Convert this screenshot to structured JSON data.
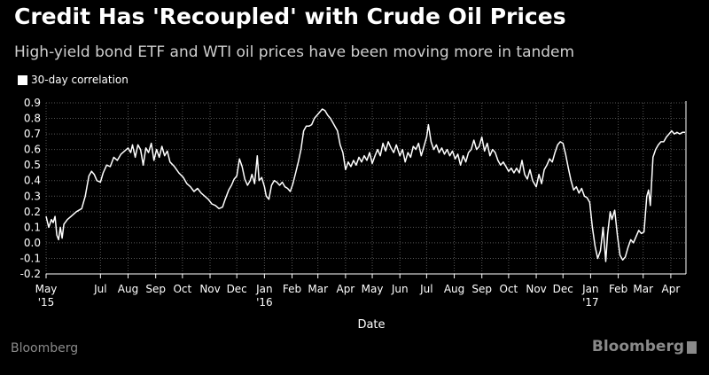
{
  "header": {
    "title": "Credit Has 'Recoupled' with Crude Oil Prices",
    "subtitle": "High-yield bond ETF and WTI oil prices have been moving more in tandem"
  },
  "legend": {
    "label": "30-day correlation"
  },
  "footer": {
    "source": "Bloomberg",
    "brand": "Bloomberg"
  },
  "colors": {
    "background": "#000000",
    "line": "#ffffff",
    "grid": "#555555",
    "text": "#ffffff",
    "muted": "#8a8a8a"
  },
  "chart_data": {
    "type": "line",
    "title": "Credit Has 'Recoupled' with Crude Oil Prices",
    "subtitle": "High-yield bond ETF and WTI oil prices have been moving more in tandem",
    "xlabel": "Date",
    "ylabel": "",
    "ylim": [
      -0.2,
      0.9
    ],
    "yticks": [
      -0.2,
      -0.1,
      0.0,
      0.1,
      0.2,
      0.3,
      0.4,
      0.5,
      0.6,
      0.7,
      0.8,
      0.9
    ],
    "ytick_labels": [
      "-0.2",
      "-0.1",
      "0.0",
      "0.1",
      "0.2",
      "0.3",
      "0.4",
      "0.5",
      "0.6",
      "0.7",
      "0.8",
      "0.9"
    ],
    "xlim": [
      "2015-05-01",
      "2017-04-18"
    ],
    "xticks": [
      {
        "date": "2015-05-01",
        "label": "May",
        "year": "'15"
      },
      {
        "date": "2015-07-01",
        "label": "Jul",
        "year": ""
      },
      {
        "date": "2015-08-01",
        "label": "Aug",
        "year": ""
      },
      {
        "date": "2015-09-01",
        "label": "Sep",
        "year": ""
      },
      {
        "date": "2015-10-01",
        "label": "Oct",
        "year": ""
      },
      {
        "date": "2015-11-01",
        "label": "Nov",
        "year": ""
      },
      {
        "date": "2015-12-01",
        "label": "Dec",
        "year": ""
      },
      {
        "date": "2016-01-01",
        "label": "Jan",
        "year": "'16"
      },
      {
        "date": "2016-02-01",
        "label": "Feb",
        "year": ""
      },
      {
        "date": "2016-03-01",
        "label": "Mar",
        "year": ""
      },
      {
        "date": "2016-04-01",
        "label": "Apr",
        "year": ""
      },
      {
        "date": "2016-05-01",
        "label": "May",
        "year": ""
      },
      {
        "date": "2016-06-01",
        "label": "Jun",
        "year": ""
      },
      {
        "date": "2016-07-01",
        "label": "Jul",
        "year": ""
      },
      {
        "date": "2016-08-01",
        "label": "Aug",
        "year": ""
      },
      {
        "date": "2016-09-01",
        "label": "Sep",
        "year": ""
      },
      {
        "date": "2016-10-01",
        "label": "Oct",
        "year": ""
      },
      {
        "date": "2016-11-01",
        "label": "Nov",
        "year": ""
      },
      {
        "date": "2016-12-01",
        "label": "Dec",
        "year": ""
      },
      {
        "date": "2017-01-01",
        "label": "Jan",
        "year": "'17"
      },
      {
        "date": "2017-02-01",
        "label": "Feb",
        "year": ""
      },
      {
        "date": "2017-03-01",
        "label": "Mar",
        "year": ""
      },
      {
        "date": "2017-04-01",
        "label": "Apr",
        "year": ""
      }
    ],
    "grid": true,
    "legend_position": "top-left",
    "series": [
      {
        "name": "30-day correlation",
        "points": [
          [
            "2015-05-01",
            0.17
          ],
          [
            "2015-05-04",
            0.1
          ],
          [
            "2015-05-07",
            0.15
          ],
          [
            "2015-05-09",
            0.13
          ],
          [
            "2015-05-11",
            0.17
          ],
          [
            "2015-05-13",
            0.05
          ],
          [
            "2015-05-15",
            0.02
          ],
          [
            "2015-05-17",
            0.1
          ],
          [
            "2015-05-19",
            0.03
          ],
          [
            "2015-05-21",
            0.12
          ],
          [
            "2015-05-25",
            0.15
          ],
          [
            "2015-05-29",
            0.17
          ],
          [
            "2015-06-04",
            0.2
          ],
          [
            "2015-06-10",
            0.22
          ],
          [
            "2015-06-14",
            0.3
          ],
          [
            "2015-06-18",
            0.43
          ],
          [
            "2015-06-21",
            0.46
          ],
          [
            "2015-06-24",
            0.44
          ],
          [
            "2015-06-27",
            0.4
          ],
          [
            "2015-07-01",
            0.39
          ],
          [
            "2015-07-04",
            0.45
          ],
          [
            "2015-07-08",
            0.5
          ],
          [
            "2015-07-12",
            0.49
          ],
          [
            "2015-07-16",
            0.55
          ],
          [
            "2015-07-20",
            0.53
          ],
          [
            "2015-07-24",
            0.57
          ],
          [
            "2015-07-28",
            0.59
          ],
          [
            "2015-08-01",
            0.61
          ],
          [
            "2015-08-04",
            0.58
          ],
          [
            "2015-08-06",
            0.63
          ],
          [
            "2015-08-09",
            0.55
          ],
          [
            "2015-08-12",
            0.63
          ],
          [
            "2015-08-15",
            0.6
          ],
          [
            "2015-08-18",
            0.5
          ],
          [
            "2015-08-21",
            0.61
          ],
          [
            "2015-08-24",
            0.58
          ],
          [
            "2015-08-27",
            0.64
          ],
          [
            "2015-08-30",
            0.53
          ],
          [
            "2015-09-02",
            0.6
          ],
          [
            "2015-09-05",
            0.55
          ],
          [
            "2015-09-08",
            0.62
          ],
          [
            "2015-09-11",
            0.56
          ],
          [
            "2015-09-14",
            0.59
          ],
          [
            "2015-09-17",
            0.52
          ],
          [
            "2015-09-22",
            0.49
          ],
          [
            "2015-09-27",
            0.45
          ],
          [
            "2015-10-02",
            0.42
          ],
          [
            "2015-10-06",
            0.38
          ],
          [
            "2015-10-10",
            0.36
          ],
          [
            "2015-10-14",
            0.33
          ],
          [
            "2015-10-18",
            0.35
          ],
          [
            "2015-10-22",
            0.32
          ],
          [
            "2015-10-26",
            0.3
          ],
          [
            "2015-10-30",
            0.28
          ],
          [
            "2015-11-03",
            0.25
          ],
          [
            "2015-11-07",
            0.24
          ],
          [
            "2015-11-11",
            0.22
          ],
          [
            "2015-11-15",
            0.23
          ],
          [
            "2015-11-18",
            0.28
          ],
          [
            "2015-11-22",
            0.34
          ],
          [
            "2015-11-25",
            0.37
          ],
          [
            "2015-11-28",
            0.41
          ],
          [
            "2015-12-01",
            0.43
          ],
          [
            "2015-12-04",
            0.54
          ],
          [
            "2015-12-07",
            0.49
          ],
          [
            "2015-12-10",
            0.41
          ],
          [
            "2015-12-13",
            0.37
          ],
          [
            "2015-12-16",
            0.4
          ],
          [
            "2015-12-18",
            0.44
          ],
          [
            "2015-12-21",
            0.38
          ],
          [
            "2015-12-24",
            0.56
          ],
          [
            "2015-12-26",
            0.4
          ],
          [
            "2015-12-29",
            0.42
          ],
          [
            "2016-01-01",
            0.36
          ],
          [
            "2016-01-03",
            0.3
          ],
          [
            "2016-01-06",
            0.28
          ],
          [
            "2016-01-09",
            0.37
          ],
          [
            "2016-01-12",
            0.4
          ],
          [
            "2016-01-15",
            0.39
          ],
          [
            "2016-01-18",
            0.37
          ],
          [
            "2016-01-21",
            0.39
          ],
          [
            "2016-01-24",
            0.36
          ],
          [
            "2016-01-27",
            0.35
          ],
          [
            "2016-01-30",
            0.33
          ],
          [
            "2016-02-02",
            0.38
          ],
          [
            "2016-02-05",
            0.45
          ],
          [
            "2016-02-08",
            0.52
          ],
          [
            "2016-02-11",
            0.6
          ],
          [
            "2016-02-14",
            0.72
          ],
          [
            "2016-02-17",
            0.75
          ],
          [
            "2016-02-20",
            0.75
          ],
          [
            "2016-02-23",
            0.76
          ],
          [
            "2016-02-26",
            0.8
          ],
          [
            "2016-02-29",
            0.82
          ],
          [
            "2016-03-03",
            0.84
          ],
          [
            "2016-03-06",
            0.86
          ],
          [
            "2016-03-09",
            0.85
          ],
          [
            "2016-03-12",
            0.82
          ],
          [
            "2016-03-15",
            0.8
          ],
          [
            "2016-03-18",
            0.77
          ],
          [
            "2016-03-21",
            0.74
          ],
          [
            "2016-03-23",
            0.72
          ],
          [
            "2016-03-26",
            0.63
          ],
          [
            "2016-03-29",
            0.58
          ],
          [
            "2016-04-01",
            0.47
          ],
          [
            "2016-04-04",
            0.52
          ],
          [
            "2016-04-07",
            0.49
          ],
          [
            "2016-04-10",
            0.53
          ],
          [
            "2016-04-13",
            0.5
          ],
          [
            "2016-04-16",
            0.55
          ],
          [
            "2016-04-19",
            0.52
          ],
          [
            "2016-04-22",
            0.56
          ],
          [
            "2016-04-25",
            0.53
          ],
          [
            "2016-04-28",
            0.58
          ],
          [
            "2016-05-01",
            0.51
          ],
          [
            "2016-05-04",
            0.56
          ],
          [
            "2016-05-07",
            0.6
          ],
          [
            "2016-05-10",
            0.56
          ],
          [
            "2016-05-13",
            0.64
          ],
          [
            "2016-05-16",
            0.59
          ],
          [
            "2016-05-19",
            0.65
          ],
          [
            "2016-05-22",
            0.61
          ],
          [
            "2016-05-25",
            0.58
          ],
          [
            "2016-05-28",
            0.63
          ],
          [
            "2016-06-01",
            0.56
          ],
          [
            "2016-06-04",
            0.6
          ],
          [
            "2016-06-07",
            0.52
          ],
          [
            "2016-06-10",
            0.58
          ],
          [
            "2016-06-13",
            0.55
          ],
          [
            "2016-06-16",
            0.62
          ],
          [
            "2016-06-19",
            0.6
          ],
          [
            "2016-06-22",
            0.64
          ],
          [
            "2016-06-25",
            0.56
          ],
          [
            "2016-06-28",
            0.62
          ],
          [
            "2016-07-01",
            0.68
          ],
          [
            "2016-07-03",
            0.76
          ],
          [
            "2016-07-06",
            0.65
          ],
          [
            "2016-07-09",
            0.6
          ],
          [
            "2016-07-12",
            0.63
          ],
          [
            "2016-07-15",
            0.58
          ],
          [
            "2016-07-18",
            0.61
          ],
          [
            "2016-07-21",
            0.57
          ],
          [
            "2016-07-24",
            0.6
          ],
          [
            "2016-07-27",
            0.56
          ],
          [
            "2016-07-30",
            0.59
          ],
          [
            "2016-08-02",
            0.54
          ],
          [
            "2016-08-05",
            0.57
          ],
          [
            "2016-08-08",
            0.5
          ],
          [
            "2016-08-11",
            0.56
          ],
          [
            "2016-08-14",
            0.52
          ],
          [
            "2016-08-17",
            0.58
          ],
          [
            "2016-08-20",
            0.6
          ],
          [
            "2016-08-23",
            0.66
          ],
          [
            "2016-08-26",
            0.6
          ],
          [
            "2016-08-29",
            0.62
          ],
          [
            "2016-09-01",
            0.68
          ],
          [
            "2016-09-04",
            0.59
          ],
          [
            "2016-09-07",
            0.64
          ],
          [
            "2016-09-10",
            0.56
          ],
          [
            "2016-09-13",
            0.6
          ],
          [
            "2016-09-16",
            0.58
          ],
          [
            "2016-09-19",
            0.53
          ],
          [
            "2016-09-22",
            0.5
          ],
          [
            "2016-09-25",
            0.52
          ],
          [
            "2016-09-28",
            0.49
          ],
          [
            "2016-10-01",
            0.46
          ],
          [
            "2016-10-04",
            0.48
          ],
          [
            "2016-10-07",
            0.45
          ],
          [
            "2016-10-10",
            0.48
          ],
          [
            "2016-10-13",
            0.45
          ],
          [
            "2016-10-16",
            0.53
          ],
          [
            "2016-10-19",
            0.44
          ],
          [
            "2016-10-22",
            0.41
          ],
          [
            "2016-10-25",
            0.47
          ],
          [
            "2016-10-28",
            0.4
          ],
          [
            "2016-11-01",
            0.36
          ],
          [
            "2016-11-04",
            0.44
          ],
          [
            "2016-11-07",
            0.38
          ],
          [
            "2016-11-10",
            0.47
          ],
          [
            "2016-11-13",
            0.5
          ],
          [
            "2016-11-16",
            0.54
          ],
          [
            "2016-11-19",
            0.52
          ],
          [
            "2016-11-22",
            0.58
          ],
          [
            "2016-11-25",
            0.63
          ],
          [
            "2016-11-28",
            0.65
          ],
          [
            "2016-12-01",
            0.64
          ],
          [
            "2016-12-04",
            0.57
          ],
          [
            "2016-12-07",
            0.48
          ],
          [
            "2016-12-10",
            0.4
          ],
          [
            "2016-12-13",
            0.34
          ],
          [
            "2016-12-16",
            0.36
          ],
          [
            "2016-12-19",
            0.32
          ],
          [
            "2016-12-22",
            0.35
          ],
          [
            "2016-12-25",
            0.3
          ],
          [
            "2016-12-28",
            0.29
          ],
          [
            "2016-12-31",
            0.26
          ],
          [
            "2017-01-03",
            0.1
          ],
          [
            "2017-01-06",
            -0.02
          ],
          [
            "2017-01-09",
            -0.1
          ],
          [
            "2017-01-12",
            -0.05
          ],
          [
            "2017-01-15",
            0.1
          ],
          [
            "2017-01-18",
            -0.12
          ],
          [
            "2017-01-20",
            0.05
          ],
          [
            "2017-01-23",
            0.2
          ],
          [
            "2017-01-25",
            0.15
          ],
          [
            "2017-01-28",
            0.21
          ],
          [
            "2017-01-31",
            0.05
          ],
          [
            "2017-02-03",
            -0.08
          ],
          [
            "2017-02-06",
            -0.11
          ],
          [
            "2017-02-09",
            -0.09
          ],
          [
            "2017-02-12",
            -0.03
          ],
          [
            "2017-02-15",
            0.02
          ],
          [
            "2017-02-18",
            0.0
          ],
          [
            "2017-02-21",
            0.04
          ],
          [
            "2017-02-24",
            0.08
          ],
          [
            "2017-02-27",
            0.06
          ],
          [
            "2017-03-02",
            0.07
          ],
          [
            "2017-03-05",
            0.3
          ],
          [
            "2017-03-07",
            0.34
          ],
          [
            "2017-03-09",
            0.24
          ],
          [
            "2017-03-12",
            0.55
          ],
          [
            "2017-03-15",
            0.6
          ],
          [
            "2017-03-18",
            0.63
          ],
          [
            "2017-03-21",
            0.65
          ],
          [
            "2017-03-24",
            0.65
          ],
          [
            "2017-03-27",
            0.68
          ],
          [
            "2017-03-30",
            0.7
          ],
          [
            "2017-04-02",
            0.72
          ],
          [
            "2017-04-05",
            0.7
          ],
          [
            "2017-04-08",
            0.71
          ],
          [
            "2017-04-11",
            0.7
          ],
          [
            "2017-04-14",
            0.71
          ],
          [
            "2017-04-17",
            0.71
          ]
        ]
      }
    ]
  }
}
